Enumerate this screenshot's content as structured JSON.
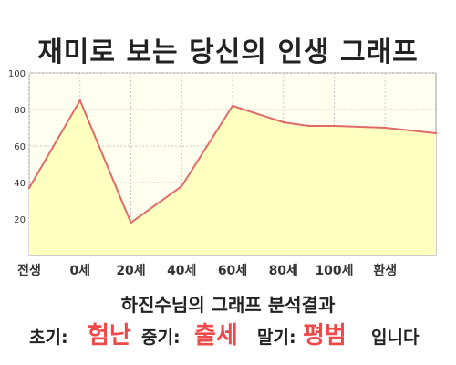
{
  "title": "재미로 보는 당신의 인생 그래프",
  "chart_data": {
    "type": "area",
    "x_positions": [
      -0.5,
      0,
      0.5,
      1,
      1.5,
      2,
      2.25,
      2.5,
      3,
      3.5
    ],
    "values": [
      37,
      85,
      18,
      38,
      82,
      73,
      71,
      71,
      70,
      67
    ],
    "x_ticks": [
      {
        "pos": -0.5,
        "label": "전생"
      },
      {
        "pos": 0,
        "label": "0세"
      },
      {
        "pos": 0.5,
        "label": "20세"
      },
      {
        "pos": 1,
        "label": "40세"
      },
      {
        "pos": 1.5,
        "label": "60세"
      },
      {
        "pos": 2,
        "label": "80세"
      },
      {
        "pos": 2.5,
        "label": "100세"
      },
      {
        "pos": 3,
        "label": "환생"
      }
    ],
    "y_ticks": [
      20,
      40,
      60,
      80,
      100
    ],
    "ylim": [
      0,
      100
    ],
    "grid": true,
    "line_color": "#e06a6a",
    "fill_color": "#ffffc0"
  },
  "result": {
    "title": "하진수님의 그래프 분석결과",
    "early_label": "초기:",
    "early_value": "험난",
    "mid_label": "중기:",
    "mid_value": "출세",
    "late_label": "말기:",
    "late_value": "평범",
    "ending": "입니다"
  }
}
